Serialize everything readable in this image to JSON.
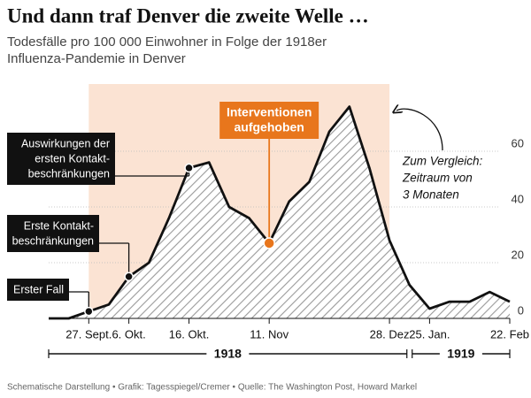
{
  "chart_data": {
    "type": "area",
    "title": "Und dann traf Denver die zweite Welle …",
    "subtitle": [
      "Todesfälle pro 100 000 Einwohner in Folge der 1918er",
      "Influenza-Pandemie in Denver"
    ],
    "categories": [
      null,
      null,
      "27. Sept.",
      null,
      "6. Okt.",
      null,
      null,
      "16. Okt.",
      null,
      null,
      null,
      "11. Nov",
      null,
      null,
      null,
      null,
      null,
      "28. Dez",
      null,
      "25. Jan.",
      null,
      null,
      null,
      "22. Feb"
    ],
    "series": [
      {
        "name": "Todesfälle",
        "color": "#111111",
        "values": [
          0,
          0,
          2.5,
          5,
          15,
          20,
          36,
          54,
          56,
          40,
          36,
          27,
          42,
          49,
          67,
          76,
          54,
          28,
          12,
          3.5,
          6,
          6,
          9.5,
          6
        ]
      }
    ],
    "ylim": [
      0,
      80
    ],
    "yticks": [
      0,
      20,
      40,
      60
    ],
    "grid": true,
    "annotations": [
      {
        "text": [
          "Erster Fall"
        ]
      },
      {
        "text": [
          "Erste Kontakt-",
          "beschränkungen"
        ]
      },
      {
        "text": [
          "Auswirkungen der",
          "ersten Kontakt-",
          "beschränkungen"
        ]
      },
      {
        "text": [
          "Interventionen",
          "aufgehoben"
        ],
        "color": "#e8761c"
      },
      {
        "text": [
          "Zum Vergleich:",
          "Zeitraum von",
          "3 Monaten"
        ]
      }
    ],
    "highlight_color": "#fbe3d3",
    "years": [
      "1918",
      "1919"
    ],
    "footer": "Schematische Darstellung • Grafik: Tagesspiegel/Cremer • Quelle: The Washington Post, Howard Markel"
  }
}
